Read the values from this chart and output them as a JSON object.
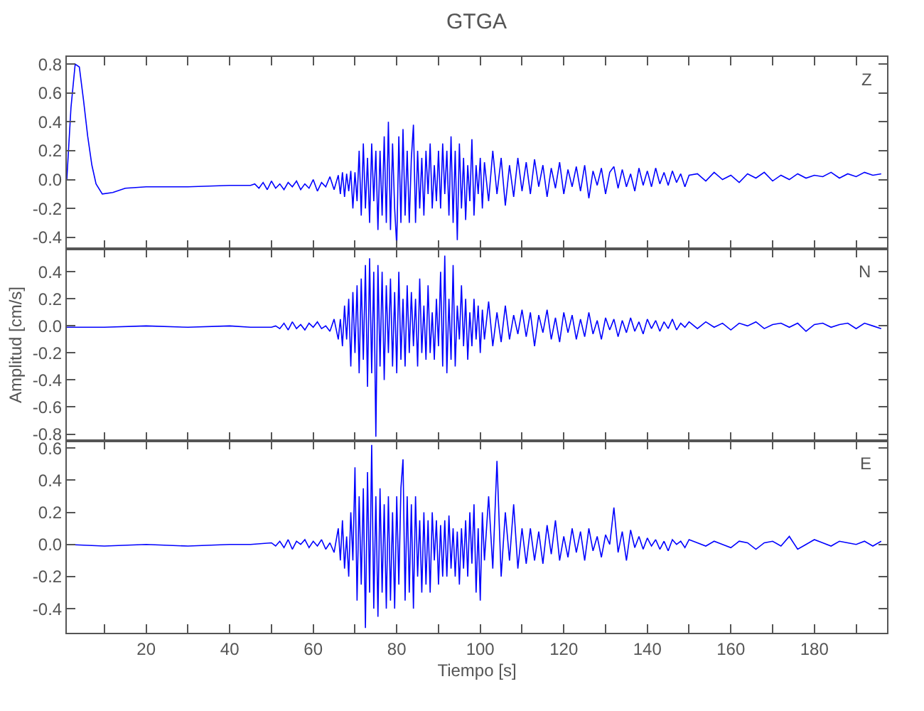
{
  "chart_data": [
    {
      "type": "line",
      "title": "GTGA",
      "annotations": [
        "Z"
      ],
      "tick_labels": "y",
      "xlim": [
        1,
        197.4
      ],
      "xticks": [
        {
          "value": 10,
          "label": null
        },
        {
          "value": 20,
          "label": null
        },
        {
          "value": 30,
          "label": null
        },
        {
          "value": 40,
          "label": null
        },
        {
          "value": 50,
          "label": null
        },
        {
          "value": 60,
          "label": null
        },
        {
          "value": 70,
          "label": null
        },
        {
          "value": 80,
          "label": null
        },
        {
          "value": 90,
          "label": null
        },
        {
          "value": 100,
          "label": null
        },
        {
          "value": 110,
          "label": null
        },
        {
          "value": 120,
          "label": null
        },
        {
          "value": 130,
          "label": null
        },
        {
          "value": 140,
          "label": null
        },
        {
          "value": 150,
          "label": null
        },
        {
          "value": 160,
          "label": null
        },
        {
          "value": 170,
          "label": null
        },
        {
          "value": 180,
          "label": null
        },
        {
          "value": 190,
          "label": null
        }
      ],
      "ylim": [
        -0.48,
        0.85
      ],
      "yticks": [
        {
          "value": -0.4,
          "label": "-0.4"
        },
        {
          "value": -0.2,
          "label": "-0.2"
        },
        {
          "value": 0,
          "label": "0.0"
        },
        {
          "value": 0.2,
          "label": "0.2"
        },
        {
          "value": 0.4,
          "label": "0.4"
        },
        {
          "value": 0.6,
          "label": "0.6"
        },
        {
          "value": 0.8,
          "label": "0.8"
        }
      ],
      "series": [
        {
          "color": "#0000ff",
          "x": [
            1,
            2,
            3,
            4,
            5,
            6,
            7,
            8,
            9.5,
            12,
            15,
            20,
            30,
            40,
            45,
            46,
            47,
            48,
            49,
            50,
            51,
            52,
            53,
            54,
            55,
            56,
            57,
            58,
            59,
            60,
            61,
            62,
            63,
            64,
            65,
            66,
            66.5,
            67,
            67.5,
            68,
            68.5,
            69,
            69.5,
            70,
            70.5,
            71,
            71.5,
            72,
            72.5,
            73,
            73.5,
            74,
            74.5,
            75,
            75.5,
            76,
            76.5,
            77,
            77.5,
            78,
            78.5,
            79,
            79.5,
            80,
            80.5,
            81,
            81.5,
            82,
            82.5,
            83,
            83.5,
            84,
            84.5,
            85,
            85.5,
            86,
            86.5,
            87,
            87.5,
            88,
            88.5,
            89,
            89.5,
            90,
            90.5,
            91,
            91.5,
            92,
            92.5,
            93,
            93.5,
            94,
            94.5,
            95,
            95.5,
            96,
            96.5,
            97,
            97.5,
            98,
            98.5,
            99,
            99.5,
            100,
            100.5,
            101,
            102,
            103,
            104,
            105,
            106,
            107,
            108,
            109,
            110,
            111,
            112,
            113,
            114,
            115,
            116,
            117,
            118,
            119,
            120,
            121,
            122,
            123,
            124,
            125,
            126,
            127,
            128,
            129,
            130,
            131,
            132,
            133,
            134,
            135,
            136,
            137,
            138,
            139,
            140,
            141,
            142,
            143,
            144,
            145,
            146,
            147,
            148,
            149,
            150,
            152,
            154,
            156,
            158,
            160,
            162,
            164,
            166,
            168,
            170,
            172,
            174,
            176,
            178,
            180,
            182,
            184,
            186,
            188,
            190,
            192,
            194,
            196
          ],
          "values": [
            0,
            0.5,
            0.8,
            0.78,
            0.55,
            0.3,
            0.1,
            -0.03,
            -0.1,
            -0.09,
            -0.06,
            -0.05,
            -0.05,
            -0.04,
            -0.04,
            -0.03,
            -0.06,
            -0.02,
            -0.07,
            -0.01,
            -0.06,
            -0.03,
            -0.07,
            -0.02,
            -0.05,
            -0.01,
            -0.07,
            -0.03,
            -0.06,
            0.0,
            -0.08,
            -0.02,
            -0.05,
            0.02,
            -0.07,
            0.03,
            -0.1,
            0.05,
            -0.12,
            0.04,
            -0.08,
            0.06,
            -0.2,
            0.05,
            -0.15,
            0.2,
            -0.25,
            0.25,
            -0.2,
            0.15,
            -0.3,
            0.25,
            -0.15,
            0.2,
            -0.35,
            0.2,
            -0.25,
            0.3,
            -0.3,
            0.4,
            -0.35,
            0.25,
            -0.2,
            -0.46,
            0.3,
            -0.3,
            0.35,
            -0.25,
            0.2,
            -0.3,
            0.15,
            0.38,
            -0.3,
            0.2,
            -0.2,
            0.15,
            -0.25,
            0.2,
            -0.1,
            0.25,
            -0.2,
            0.1,
            -0.15,
            0.2,
            -0.2,
            0.25,
            -0.1,
            0.2,
            -0.25,
            0.3,
            -0.3,
            0.2,
            -0.42,
            0.25,
            -0.2,
            0.15,
            -0.28,
            0.1,
            -0.15,
            0.28,
            -0.25,
            0.1,
            -0.1,
            0.15,
            -0.2,
            0.12,
            -0.15,
            0.2,
            -0.1,
            0.15,
            -0.18,
            0.1,
            -0.12,
            0.15,
            -0.08,
            0.12,
            -0.1,
            0.14,
            -0.05,
            0.1,
            -0.12,
            0.08,
            -0.06,
            0.12,
            -0.1,
            0.07,
            -0.05,
            0.09,
            -0.08,
            0.1,
            -0.13,
            0.06,
            -0.04,
            0.08,
            -0.1,
            0.05,
            0.09,
            -0.06,
            0.07,
            -0.05,
            0.04,
            -0.08,
            0.08,
            -0.04,
            0.06,
            -0.05,
            0.08,
            -0.03,
            0.05,
            -0.04,
            0.06,
            -0.02,
            0.04,
            -0.05,
            0.03,
            0.04,
            -0.01,
            0.05,
            0.0,
            0.03,
            -0.02,
            0.04,
            0.01,
            0.05,
            -0.01,
            0.03,
            0.0,
            0.04,
            0.01,
            0.03,
            0.02,
            0.05,
            0.01,
            0.04,
            0.02,
            0.05,
            0.03,
            0.04
          ]
        }
      ]
    },
    {
      "type": "line",
      "ylabel": "Amplitud [cm/s]",
      "annotations": [
        "N"
      ],
      "tick_labels": "y",
      "xlim": [
        1,
        197.4
      ],
      "xticks": [
        {
          "value": 10,
          "label": null
        },
        {
          "value": 20,
          "label": null
        },
        {
          "value": 30,
          "label": null
        },
        {
          "value": 40,
          "label": null
        },
        {
          "value": 50,
          "label": null
        },
        {
          "value": 60,
          "label": null
        },
        {
          "value": 70,
          "label": null
        },
        {
          "value": 80,
          "label": null
        },
        {
          "value": 90,
          "label": null
        },
        {
          "value": 100,
          "label": null
        },
        {
          "value": 110,
          "label": null
        },
        {
          "value": 120,
          "label": null
        },
        {
          "value": 130,
          "label": null
        },
        {
          "value": 140,
          "label": null
        },
        {
          "value": 150,
          "label": null
        },
        {
          "value": 160,
          "label": null
        },
        {
          "value": 170,
          "label": null
        },
        {
          "value": 180,
          "label": null
        },
        {
          "value": 190,
          "label": null
        }
      ],
      "ylim": [
        -0.85,
        0.57
      ],
      "yticks": [
        {
          "value": -0.8,
          "label": "-0.8"
        },
        {
          "value": -0.6,
          "label": "-0.6"
        },
        {
          "value": -0.4,
          "label": "-0.4"
        },
        {
          "value": -0.2,
          "label": "-0.2"
        },
        {
          "value": 0,
          "label": "0.0"
        },
        {
          "value": 0.2,
          "label": "0.2"
        },
        {
          "value": 0.4,
          "label": "0.4"
        }
      ],
      "series": [
        {
          "color": "#0000ff",
          "x": [
            1,
            10,
            20,
            30,
            40,
            45,
            50,
            51,
            52,
            53,
            54,
            55,
            56,
            57,
            58,
            59,
            60,
            61,
            62,
            63,
            64,
            65,
            66,
            66.5,
            67,
            67.5,
            68,
            68.5,
            69,
            69.5,
            70,
            70.5,
            71,
            71.5,
            72,
            72.5,
            73,
            73.5,
            74,
            74.5,
            75,
            75.5,
            76,
            76.5,
            77,
            77.5,
            78,
            78.5,
            79,
            79.5,
            80,
            80.5,
            81,
            81.5,
            82,
            82.5,
            83,
            83.5,
            84,
            84.5,
            85,
            85.5,
            86,
            86.5,
            87,
            87.5,
            88,
            88.5,
            89,
            89.5,
            90,
            90.5,
            91,
            91.5,
            92,
            92.5,
            93,
            93.5,
            94,
            94.5,
            95,
            95.5,
            96,
            96.5,
            97,
            97.5,
            98,
            98.5,
            99,
            99.5,
            100,
            100.5,
            101,
            102,
            103,
            104,
            105,
            106,
            107,
            108,
            109,
            110,
            111,
            112,
            113,
            114,
            115,
            116,
            117,
            118,
            119,
            120,
            121,
            122,
            123,
            124,
            125,
            126,
            127,
            128,
            129,
            130,
            131,
            132,
            133,
            134,
            135,
            136,
            137,
            138,
            139,
            140,
            141,
            142,
            143,
            144,
            145,
            146,
            147,
            148,
            149,
            150,
            152,
            154,
            156,
            158,
            160,
            162,
            164,
            166,
            168,
            170,
            172,
            174,
            176,
            178,
            180,
            182,
            184,
            186,
            188,
            190,
            192,
            194,
            196
          ],
          "values": [
            -0.01,
            -0.01,
            0.0,
            -0.01,
            0.0,
            -0.01,
            -0.01,
            0.0,
            -0.02,
            0.02,
            -0.03,
            0.03,
            -0.02,
            0.01,
            -0.03,
            0.02,
            -0.01,
            0.03,
            -0.02,
            0.0,
            -0.04,
            0.05,
            -0.1,
            0.05,
            -0.15,
            0.15,
            -0.1,
            0.2,
            -0.3,
            0.25,
            -0.2,
            0.3,
            -0.35,
            0.35,
            -0.25,
            0.45,
            -0.45,
            0.5,
            -0.35,
            0.4,
            -0.82,
            0.45,
            -0.3,
            0.4,
            -0.4,
            0.3,
            -0.2,
            0.35,
            -0.3,
            0.25,
            -0.35,
            0.4,
            -0.25,
            0.2,
            -0.3,
            0.3,
            -0.2,
            0.25,
            -0.15,
            0.2,
            -0.3,
            0.35,
            -0.2,
            0.15,
            -0.25,
            0.3,
            -0.2,
            0.1,
            -0.25,
            0.2,
            -0.15,
            0.4,
            -0.3,
            0.52,
            -0.35,
            0.2,
            -0.25,
            0.45,
            -0.3,
            0.15,
            -0.1,
            0.3,
            -0.15,
            0.2,
            -0.25,
            0.1,
            -0.15,
            0.2,
            -0.1,
            0.15,
            -0.2,
            0.12,
            -0.1,
            0.18,
            -0.15,
            0.1,
            -0.12,
            0.15,
            -0.1,
            0.08,
            -0.06,
            0.12,
            -0.08,
            0.1,
            -0.15,
            0.08,
            -0.05,
            0.12,
            -0.1,
            0.06,
            -0.12,
            0.1,
            -0.05,
            0.08,
            -0.1,
            0.05,
            -0.08,
            0.1,
            -0.06,
            0.04,
            -0.1,
            0.06,
            -0.03,
            0.05,
            -0.08,
            0.04,
            -0.05,
            0.06,
            -0.04,
            0.03,
            -0.06,
            0.05,
            -0.02,
            0.04,
            -0.04,
            0.03,
            -0.02,
            0.05,
            -0.03,
            0.02,
            -0.01,
            0.03,
            -0.02,
            0.03,
            -0.01,
            0.02,
            -0.03,
            0.02,
            0.0,
            0.03,
            -0.02,
            0.01,
            0.02,
            -0.01,
            0.02,
            -0.04,
            0.01,
            0.02,
            -0.01,
            0.01,
            0.02,
            -0.02,
            0.02,
            0.0,
            -0.02
          ]
        }
      ]
    },
    {
      "type": "line",
      "xlabel": "Tiempo [s]",
      "annotations": [
        "E"
      ],
      "xlim": [
        1,
        197.4
      ],
      "xticks": [
        {
          "value": 10,
          "label": null
        },
        20,
        {
          "value": 30,
          "label": null
        },
        40,
        {
          "value": 50,
          "label": null
        },
        60,
        {
          "value": 70,
          "label": null
        },
        80,
        {
          "value": 90,
          "label": null
        },
        100,
        {
          "value": 110,
          "label": null
        },
        120,
        {
          "value": 130,
          "label": null
        },
        140,
        {
          "value": 150,
          "label": null
        },
        160,
        {
          "value": 170,
          "label": null
        },
        180,
        {
          "value": 190,
          "label": null
        }
      ],
      "ylim": [
        -0.55,
        0.645
      ],
      "yticks": [
        {
          "value": -0.4,
          "label": "-0.4"
        },
        {
          "value": -0.2,
          "label": "-0.2"
        },
        {
          "value": 0,
          "label": "0.0"
        },
        {
          "value": 0.2,
          "label": "0.2"
        },
        {
          "value": 0.4,
          "label": "0.4"
        },
        {
          "value": 0.6,
          "label": "0.6"
        }
      ],
      "series": [
        {
          "color": "#0000ff",
          "x": [
            1,
            10,
            20,
            30,
            40,
            45,
            50,
            51,
            52,
            53,
            54,
            55,
            56,
            57,
            58,
            59,
            60,
            61,
            62,
            63,
            64,
            65,
            66,
            66.5,
            67,
            67.5,
            68,
            68.5,
            69,
            69.5,
            70,
            70.5,
            71,
            71.5,
            72,
            72.5,
            73,
            73.5,
            74,
            74.5,
            75,
            75.5,
            76,
            76.5,
            77,
            77.5,
            78,
            78.5,
            79,
            79.5,
            80,
            80.5,
            81,
            81.5,
            82,
            82.5,
            83,
            83.5,
            84,
            84.5,
            85,
            85.5,
            86,
            86.5,
            87,
            87.5,
            88,
            88.5,
            89,
            89.5,
            90,
            90.5,
            91,
            91.5,
            92,
            92.5,
            93,
            93.5,
            94,
            94.5,
            95,
            95.5,
            96,
            96.5,
            97,
            97.5,
            98,
            98.5,
            99,
            99.5,
            100,
            100.5,
            101,
            102,
            103,
            104,
            105,
            106,
            107,
            108,
            109,
            110,
            111,
            112,
            113,
            114,
            115,
            116,
            117,
            118,
            119,
            120,
            121,
            122,
            123,
            124,
            125,
            126,
            127,
            128,
            129,
            130,
            131,
            132,
            133,
            134,
            135,
            136,
            137,
            138,
            139,
            140,
            141,
            142,
            143,
            144,
            145,
            146,
            147,
            148,
            149,
            150,
            152,
            154,
            156,
            158,
            160,
            162,
            164,
            166,
            168,
            170,
            172,
            174,
            176,
            178,
            180,
            182,
            184,
            186,
            188,
            190,
            192,
            194,
            196
          ],
          "values": [
            0.0,
            -0.01,
            0.0,
            -0.01,
            0.0,
            0.0,
            0.01,
            -0.01,
            0.02,
            -0.02,
            0.03,
            -0.03,
            0.02,
            0.0,
            0.03,
            -0.02,
            0.02,
            -0.01,
            0.03,
            -0.03,
            0.01,
            -0.05,
            0.1,
            -0.1,
            0.15,
            -0.15,
            0.05,
            -0.2,
            0.2,
            -0.1,
            0.48,
            -0.35,
            0.3,
            -0.25,
            0.35,
            -0.52,
            0.45,
            -0.3,
            0.62,
            -0.4,
            0.3,
            -0.45,
            0.35,
            -0.3,
            0.25,
            -0.4,
            0.3,
            -0.35,
            0.2,
            -0.4,
            0.3,
            -0.25,
            0.35,
            0.53,
            -0.35,
            0.3,
            -0.3,
            0.25,
            -0.4,
            0.3,
            -0.2,
            0.15,
            -0.3,
            0.2,
            -0.25,
            0.15,
            -0.3,
            0.2,
            -0.1,
            0.15,
            -0.25,
            0.12,
            -0.2,
            0.15,
            -0.2,
            0.18,
            -0.15,
            0.1,
            -0.2,
            0.08,
            -0.25,
            0.1,
            -0.15,
            0.15,
            -0.2,
            0.2,
            -0.12,
            0.25,
            -0.3,
            0.1,
            -0.35,
            0.2,
            -0.1,
            0.3,
            -0.15,
            0.52,
            -0.2,
            0.2,
            -0.1,
            0.25,
            -0.15,
            0.1,
            -0.12,
            0.1,
            -0.1,
            0.08,
            -0.12,
            0.12,
            -0.06,
            0.15,
            -0.1,
            0.05,
            -0.08,
            0.1,
            -0.05,
            0.08,
            -0.1,
            0.1,
            -0.04,
            0.05,
            -0.08,
            0.06,
            0.0,
            0.23,
            -0.05,
            0.08,
            -0.1,
            0.09,
            -0.02,
            0.05,
            -0.03,
            0.04,
            -0.01,
            0.03,
            -0.03,
            0.02,
            -0.04,
            0.03,
            0.0,
            0.02,
            -0.02,
            0.03,
            0.01,
            -0.01,
            0.02,
            0.0,
            -0.02,
            0.02,
            0.01,
            -0.03,
            0.01,
            0.02,
            -0.01,
            0.05,
            -0.03,
            0.0,
            0.03,
            0.01,
            -0.01,
            0.02,
            0.01,
            0.0,
            0.02,
            -0.01,
            0.02
          ]
        }
      ]
    }
  ]
}
